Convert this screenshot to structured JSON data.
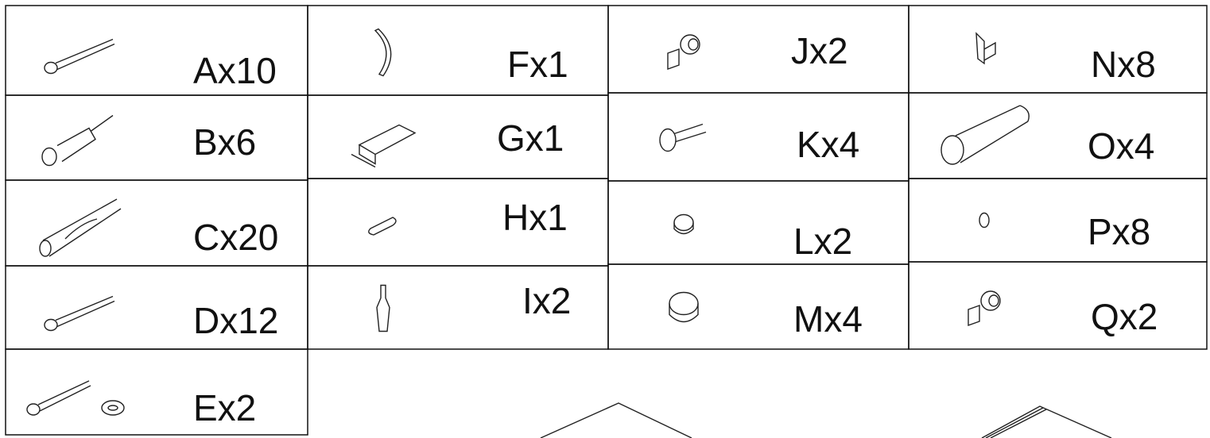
{
  "columns": [
    [
      "Ax10",
      "Bx6",
      "Cx20",
      "Dx12",
      "Ex2"
    ],
    [
      "Fx1",
      "Gx1",
      "Hx1",
      "Ix2"
    ],
    [
      "Jx2",
      "Kx4",
      "Lx2",
      "Mx4"
    ],
    [
      "Nx8",
      "Ox4",
      "Px8",
      "Qx2"
    ]
  ]
}
